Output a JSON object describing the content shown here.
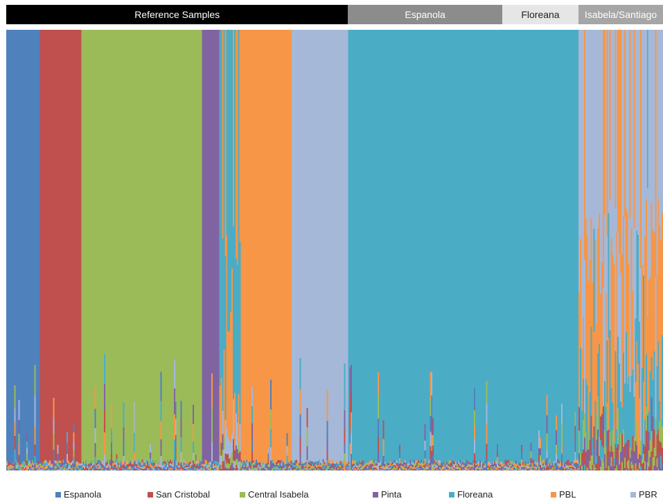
{
  "chart_data": {
    "type": "bar",
    "stacked": true,
    "title": "",
    "xlabel": "",
    "ylabel": "",
    "ylim": [
      0,
      1
    ],
    "grid": false,
    "legend_position": "bottom",
    "groups": [
      {
        "label": "Reference Samples",
        "from": 0,
        "to": 255,
        "fill": "#000000",
        "text_color": "#ffffff"
      },
      {
        "label": "Espanola",
        "from": 255,
        "to": 370,
        "fill": "#8c8c8c",
        "text_color": "#ffffff"
      },
      {
        "label": "Floreana",
        "from": 370,
        "to": 427,
        "fill": "#e6e6e6",
        "text_color": "#222222"
      },
      {
        "label": "Isabela/Santiago",
        "from": 427,
        "to": 490,
        "fill": "#a6a6a6",
        "text_color": "#ffffff"
      }
    ],
    "n_individuals": 490,
    "series": [
      {
        "name": "Espanola",
        "color": "#4f81bd"
      },
      {
        "name": "San Cristobal",
        "color": "#c0504d"
      },
      {
        "name": "Central Isabela",
        "color": "#9bbb59"
      },
      {
        "name": "Pinta",
        "color": "#8064a2"
      },
      {
        "name": "Floreana",
        "color": "#4bacc6"
      },
      {
        "name": "PBL",
        "color": "#f79646"
      },
      {
        "name": "PBR",
        "color": "#a5b8d8"
      }
    ],
    "blocks": [
      {
        "from": 0,
        "to": 25,
        "dominant": 0
      },
      {
        "from": 25,
        "to": 56,
        "dominant": 1
      },
      {
        "from": 56,
        "to": 146,
        "dominant": 2
      },
      {
        "from": 146,
        "to": 159,
        "dominant": 3
      },
      {
        "from": 159,
        "to": 175,
        "dominant": "mixed-floreana"
      },
      {
        "from": 175,
        "to": 213,
        "dominant": 5
      },
      {
        "from": 213,
        "to": 255,
        "dominant": 6
      },
      {
        "from": 255,
        "to": 427,
        "dominant": 4
      },
      {
        "from": 427,
        "to": 490,
        "dominant": "mixed-isabela"
      }
    ]
  }
}
